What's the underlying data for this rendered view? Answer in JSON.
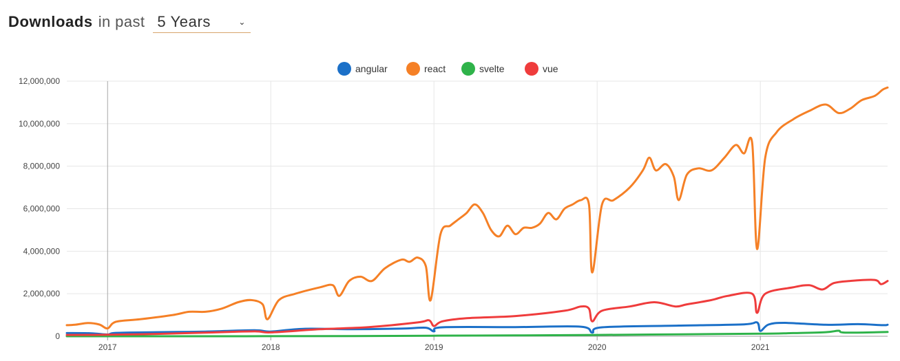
{
  "header": {
    "title": "Downloads",
    "in_past": "in past",
    "period": "5 Years"
  },
  "chart_data": {
    "type": "line",
    "title": "",
    "xlabel": "",
    "ylabel": "",
    "ylim": [
      0,
      12000000
    ],
    "yticks": [
      0,
      2000000,
      4000000,
      6000000,
      8000000,
      10000000,
      12000000
    ],
    "ytick_labels": [
      "0",
      "2,000,000",
      "4,000,000",
      "6,000,000",
      "8,000,000",
      "10,000,000",
      "12,000,000"
    ],
    "xlim": [
      2016.75,
      2021.78
    ],
    "xticks": [
      2017,
      2018,
      2019,
      2020,
      2021
    ],
    "xtick_labels": [
      "2017",
      "2018",
      "2019",
      "2020",
      "2021"
    ],
    "grid": true,
    "legend": "top-center",
    "series": [
      {
        "name": "angular",
        "color": "#1b70c8",
        "points": [
          [
            2016.75,
            150000
          ],
          [
            2016.9,
            140000
          ],
          [
            2017.0,
            80000
          ],
          [
            2017.05,
            160000
          ],
          [
            2017.3,
            190000
          ],
          [
            2017.6,
            220000
          ],
          [
            2017.9,
            280000
          ],
          [
            2018.0,
            220000
          ],
          [
            2018.2,
            350000
          ],
          [
            2018.5,
            330000
          ],
          [
            2018.8,
            360000
          ],
          [
            2018.95,
            400000
          ],
          [
            2019.0,
            230000
          ],
          [
            2019.05,
            420000
          ],
          [
            2019.5,
            430000
          ],
          [
            2019.9,
            450000
          ],
          [
            2019.97,
            170000
          ],
          [
            2020.03,
            420000
          ],
          [
            2020.5,
            500000
          ],
          [
            2020.9,
            560000
          ],
          [
            2020.98,
            650000
          ],
          [
            2021.0,
            250000
          ],
          [
            2021.05,
            550000
          ],
          [
            2021.15,
            630000
          ],
          [
            2021.4,
            540000
          ],
          [
            2021.6,
            570000
          ],
          [
            2021.75,
            520000
          ],
          [
            2021.78,
            540000
          ]
        ]
      },
      {
        "name": "react",
        "color": "#f58026",
        "points": [
          [
            2016.75,
            520000
          ],
          [
            2016.8,
            540000
          ],
          [
            2016.88,
            620000
          ],
          [
            2016.95,
            550000
          ],
          [
            2017.0,
            370000
          ],
          [
            2017.05,
            680000
          ],
          [
            2017.2,
            800000
          ],
          [
            2017.4,
            1000000
          ],
          [
            2017.5,
            1150000
          ],
          [
            2017.6,
            1150000
          ],
          [
            2017.7,
            1300000
          ],
          [
            2017.8,
            1600000
          ],
          [
            2017.88,
            1700000
          ],
          [
            2017.95,
            1500000
          ],
          [
            2017.98,
            800000
          ],
          [
            2018.05,
            1700000
          ],
          [
            2018.15,
            2000000
          ],
          [
            2018.3,
            2300000
          ],
          [
            2018.38,
            2400000
          ],
          [
            2018.42,
            1900000
          ],
          [
            2018.48,
            2600000
          ],
          [
            2018.55,
            2800000
          ],
          [
            2018.62,
            2600000
          ],
          [
            2018.7,
            3200000
          ],
          [
            2018.8,
            3600000
          ],
          [
            2018.85,
            3500000
          ],
          [
            2018.9,
            3700000
          ],
          [
            2018.95,
            3300000
          ],
          [
            2018.98,
            1700000
          ],
          [
            2019.04,
            4800000
          ],
          [
            2019.1,
            5200000
          ],
          [
            2019.15,
            5500000
          ],
          [
            2019.2,
            5800000
          ],
          [
            2019.25,
            6200000
          ],
          [
            2019.3,
            5800000
          ],
          [
            2019.35,
            5000000
          ],
          [
            2019.4,
            4700000
          ],
          [
            2019.45,
            5200000
          ],
          [
            2019.5,
            4800000
          ],
          [
            2019.55,
            5100000
          ],
          [
            2019.6,
            5100000
          ],
          [
            2019.65,
            5300000
          ],
          [
            2019.7,
            5800000
          ],
          [
            2019.75,
            5500000
          ],
          [
            2019.8,
            6000000
          ],
          [
            2019.85,
            6200000
          ],
          [
            2019.9,
            6400000
          ],
          [
            2019.95,
            6200000
          ],
          [
            2019.97,
            3000000
          ],
          [
            2020.03,
            6200000
          ],
          [
            2020.1,
            6400000
          ],
          [
            2020.2,
            7000000
          ],
          [
            2020.28,
            7800000
          ],
          [
            2020.32,
            8400000
          ],
          [
            2020.36,
            7800000
          ],
          [
            2020.42,
            8100000
          ],
          [
            2020.47,
            7500000
          ],
          [
            2020.5,
            6400000
          ],
          [
            2020.55,
            7600000
          ],
          [
            2020.62,
            7900000
          ],
          [
            2020.7,
            7800000
          ],
          [
            2020.78,
            8400000
          ],
          [
            2020.85,
            9000000
          ],
          [
            2020.9,
            8600000
          ],
          [
            2020.95,
            9100000
          ],
          [
            2020.98,
            4100000
          ],
          [
            2021.03,
            8400000
          ],
          [
            2021.1,
            9600000
          ],
          [
            2021.2,
            10200000
          ],
          [
            2021.3,
            10600000
          ],
          [
            2021.4,
            10900000
          ],
          [
            2021.48,
            10500000
          ],
          [
            2021.55,
            10700000
          ],
          [
            2021.62,
            11100000
          ],
          [
            2021.7,
            11300000
          ],
          [
            2021.75,
            11600000
          ],
          [
            2021.78,
            11700000
          ]
        ]
      },
      {
        "name": "svelte",
        "color": "#2fb34a",
        "points": [
          [
            2016.75,
            0
          ],
          [
            2017.5,
            0
          ],
          [
            2018.0,
            3000
          ],
          [
            2018.5,
            10000
          ],
          [
            2019.0,
            25000
          ],
          [
            2019.5,
            40000
          ],
          [
            2020.0,
            60000
          ],
          [
            2020.5,
            90000
          ],
          [
            2021.0,
            120000
          ],
          [
            2021.2,
            150000
          ],
          [
            2021.4,
            190000
          ],
          [
            2021.48,
            260000
          ],
          [
            2021.52,
            170000
          ],
          [
            2021.78,
            200000
          ]
        ]
      },
      {
        "name": "vue",
        "color": "#ef3c3c",
        "points": [
          [
            2016.75,
            60000
          ],
          [
            2017.0,
            70000
          ],
          [
            2017.3,
            110000
          ],
          [
            2017.6,
            170000
          ],
          [
            2017.9,
            230000
          ],
          [
            2018.0,
            180000
          ],
          [
            2018.3,
            330000
          ],
          [
            2018.6,
            430000
          ],
          [
            2018.9,
            650000
          ],
          [
            2018.97,
            750000
          ],
          [
            2019.0,
            480000
          ],
          [
            2019.05,
            700000
          ],
          [
            2019.2,
            850000
          ],
          [
            2019.5,
            950000
          ],
          [
            2019.8,
            1200000
          ],
          [
            2019.9,
            1400000
          ],
          [
            2019.95,
            1300000
          ],
          [
            2019.97,
            700000
          ],
          [
            2020.03,
            1200000
          ],
          [
            2020.2,
            1400000
          ],
          [
            2020.35,
            1600000
          ],
          [
            2020.48,
            1400000
          ],
          [
            2020.55,
            1500000
          ],
          [
            2020.7,
            1700000
          ],
          [
            2020.8,
            1900000
          ],
          [
            2020.95,
            2000000
          ],
          [
            2020.98,
            1100000
          ],
          [
            2021.03,
            2000000
          ],
          [
            2021.2,
            2300000
          ],
          [
            2021.3,
            2400000
          ],
          [
            2021.38,
            2200000
          ],
          [
            2021.45,
            2500000
          ],
          [
            2021.55,
            2600000
          ],
          [
            2021.7,
            2650000
          ],
          [
            2021.74,
            2450000
          ],
          [
            2021.78,
            2600000
          ]
        ]
      }
    ]
  }
}
